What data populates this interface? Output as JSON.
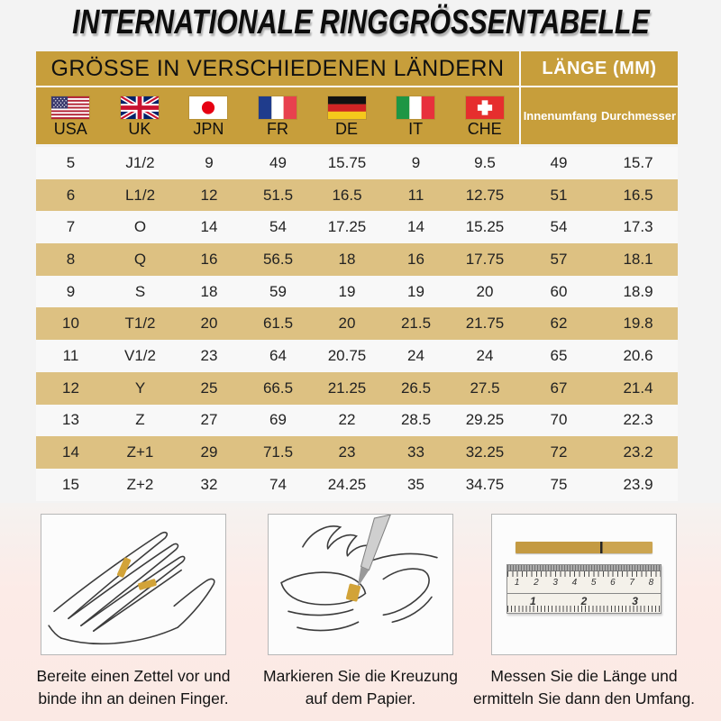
{
  "title": "INTERNATIONALE RINGGRÖSSENTABELLE",
  "table": {
    "header_left": "GRÖSSE IN VERSCHIEDENEN LÄNDERN",
    "header_right": "LÄNGE (MM)"
  },
  "chart_data": {
    "type": "table",
    "title": "Internationale Ringgrössentabelle",
    "columns": [
      "USA",
      "UK",
      "JPN",
      "FR",
      "DE",
      "IT",
      "CHE",
      "Innenumfang",
      "Durchmesser"
    ],
    "flag_icons": [
      "usa-flag-icon",
      "uk-flag-icon",
      "japan-flag-icon",
      "france-flag-icon",
      "germany-flag-icon",
      "italy-flag-icon",
      "switzerland-flag-icon"
    ],
    "rows": [
      [
        "5",
        "J1/2",
        "9",
        "49",
        "15.75",
        "9",
        "9.5",
        "49",
        "15.7"
      ],
      [
        "6",
        "L1/2",
        "12",
        "51.5",
        "16.5",
        "11",
        "12.75",
        "51",
        "16.5"
      ],
      [
        "7",
        "O",
        "14",
        "54",
        "17.25",
        "14",
        "15.25",
        "54",
        "17.3"
      ],
      [
        "8",
        "Q",
        "16",
        "56.5",
        "18",
        "16",
        "17.75",
        "57",
        "18.1"
      ],
      [
        "9",
        "S",
        "18",
        "59",
        "19",
        "19",
        "20",
        "60",
        "18.9"
      ],
      [
        "10",
        "T1/2",
        "20",
        "61.5",
        "20",
        "21.5",
        "21.75",
        "62",
        "19.8"
      ],
      [
        "11",
        "V1/2",
        "23",
        "64",
        "20.75",
        "24",
        "24",
        "65",
        "20.6"
      ],
      [
        "12",
        "Y",
        "25",
        "66.5",
        "21.25",
        "26.5",
        "27.5",
        "67",
        "21.4"
      ],
      [
        "13",
        "Z",
        "27",
        "69",
        "22",
        "28.5",
        "29.25",
        "70",
        "22.3"
      ],
      [
        "14",
        "Z+1",
        "29",
        "71.5",
        "23",
        "33",
        "32.25",
        "72",
        "23.2"
      ],
      [
        "15",
        "Z+2",
        "32",
        "74",
        "24.25",
        "35",
        "34.75",
        "75",
        "23.9"
      ]
    ]
  },
  "instructions": [
    {
      "icon": "hand-with-paper-strip-illustration",
      "caption": "Bereite einen Zettel vor und\nbinde ihn an deinen Finger."
    },
    {
      "icon": "pen-marking-illustration",
      "caption": "Markieren Sie die Kreuzung\nauf dem Papier."
    },
    {
      "icon": "ruler-measure-illustration",
      "caption": "Messen Sie die Länge und\nermitteln Sie dann den Umfang."
    }
  ],
  "ruler": {
    "top_numbers": [
      "1",
      "2",
      "3",
      "4",
      "5",
      "6",
      "7",
      "8"
    ],
    "bottom_numbers": [
      "1",
      "2",
      "3"
    ]
  },
  "colors": {
    "gold": "#C79E3B",
    "tan": "#DDC182",
    "light": "#F8F8F8",
    "pink": "#FBE9E4"
  }
}
